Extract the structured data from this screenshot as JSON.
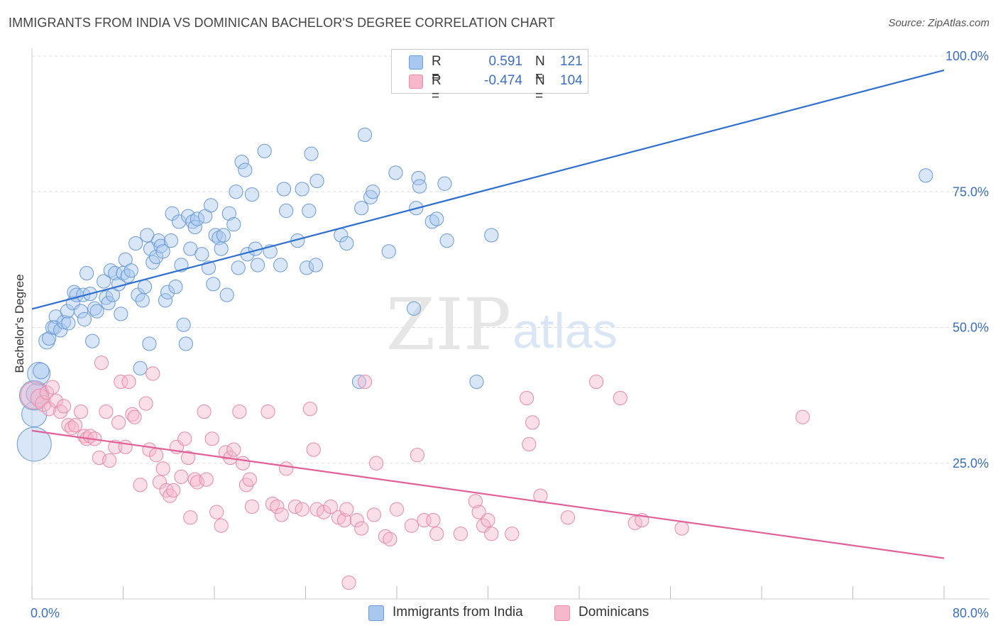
{
  "title": "IMMIGRANTS FROM INDIA VS DOMINICAN BACHELOR'S DEGREE CORRELATION CHART",
  "source": "Source: ZipAtlas.com",
  "watermark": {
    "zip": "ZIP",
    "atlas": "atlas"
  },
  "legend": {
    "india": {
      "r_label": "R =",
      "r_value": "0.591",
      "n_label": "N =",
      "n_value": "121"
    },
    "dominican": {
      "r_label": "R =",
      "r_value": "-0.474",
      "n_label": "N =",
      "n_value": "104"
    }
  },
  "bottom_legend": {
    "india": "Immigrants from India",
    "dominican": "Dominicans"
  },
  "colors": {
    "india_fill": "#a9c8f0",
    "india_stroke": "#6a9ad8",
    "india_line": "#2e6fcf",
    "dominican_fill": "#f7b8cc",
    "dominican_stroke": "#e88aa8",
    "dominican_line": "#e0609a",
    "tick_label": "#3b6fc0",
    "grid": "#dddddd"
  },
  "chart_data": {
    "type": "scatter",
    "title": "IMMIGRANTS FROM INDIA VS DOMINICAN BACHELOR'S DEGREE CORRELATION CHART",
    "xlabel": "",
    "ylabel": "Bachelor's Degree",
    "xlim": [
      0,
      80
    ],
    "ylim": [
      0,
      100
    ],
    "x_tick_labels": [
      "0.0%",
      "80.0%"
    ],
    "y_tick_labels": [
      "25.0%",
      "50.0%",
      "75.0%",
      "100.0%"
    ],
    "y_ticks": [
      25,
      50,
      75,
      100
    ],
    "grid": true,
    "legend_placement": "top-center",
    "series": [
      {
        "name": "Immigrants from India",
        "r": 0.591,
        "n": 121,
        "trend": {
          "x": [
            0,
            80
          ],
          "y": [
            53.4,
            97.4
          ]
        },
        "points": [
          [
            0.2,
            28.5,
            3
          ],
          [
            0.2,
            34.0,
            2.2
          ],
          [
            0.2,
            37.5,
            2.6
          ],
          [
            0.4,
            37.8,
            1.8
          ],
          [
            0.6,
            41.5,
            2.0
          ],
          [
            0.8,
            42.0,
            1.4
          ],
          [
            1.3,
            47.5,
            1.4
          ],
          [
            1.5,
            48.0,
            1.2
          ],
          [
            1.8,
            50.0,
            1.2
          ],
          [
            2.1,
            52.0,
            1.2
          ],
          [
            2.0,
            50.0,
            1.2
          ],
          [
            2.5,
            49.5,
            1.2
          ],
          [
            2.8,
            51.0,
            1.2
          ],
          [
            3.2,
            50.8,
            1.2
          ],
          [
            3.1,
            53.0,
            1.2
          ],
          [
            3.6,
            54.5,
            1.2
          ],
          [
            3.7,
            56.5,
            1.2
          ],
          [
            3.9,
            56.0,
            1.2
          ],
          [
            4.3,
            53.0,
            1.2
          ],
          [
            4.5,
            56.0,
            1.2
          ],
          [
            4.6,
            51.5,
            1.2
          ],
          [
            4.8,
            60.0,
            1.2
          ],
          [
            5.1,
            56.2,
            1.2
          ],
          [
            5.3,
            47.5,
            1.2
          ],
          [
            5.5,
            53.5,
            1.2
          ],
          [
            5.7,
            53.0,
            1.2
          ],
          [
            6.3,
            58.5,
            1.2
          ],
          [
            6.5,
            55.5,
            1.2
          ],
          [
            6.7,
            54.5,
            1.2
          ],
          [
            6.9,
            60.5,
            1.2
          ],
          [
            7.1,
            56.0,
            1.2
          ],
          [
            7.3,
            60.0,
            1.2
          ],
          [
            7.6,
            58.0,
            1.2
          ],
          [
            7.8,
            52.5,
            1.2
          ],
          [
            8.0,
            60.0,
            1.2
          ],
          [
            8.2,
            62.5,
            1.2
          ],
          [
            8.4,
            59.5,
            1.2
          ],
          [
            8.7,
            60.5,
            1.2
          ],
          [
            9.1,
            65.5,
            1.2
          ],
          [
            9.3,
            56.0,
            1.2
          ],
          [
            9.5,
            42.5,
            1.2
          ],
          [
            9.7,
            55.0,
            1.2
          ],
          [
            9.9,
            57.5,
            1.2
          ],
          [
            10.1,
            67.0,
            1.2
          ],
          [
            10.3,
            47.0,
            1.2
          ],
          [
            10.4,
            64.5,
            1.2
          ],
          [
            10.6,
            62.0,
            1.2
          ],
          [
            10.9,
            63.0,
            1.2
          ],
          [
            11.1,
            66.0,
            1.2
          ],
          [
            11.3,
            65.0,
            1.2
          ],
          [
            11.5,
            64.0,
            1.2
          ],
          [
            11.7,
            55.0,
            1.2
          ],
          [
            11.9,
            56.5,
            1.2
          ],
          [
            12.2,
            66.0,
            1.2
          ],
          [
            12.3,
            71.0,
            1.2
          ],
          [
            12.6,
            57.5,
            1.2
          ],
          [
            12.9,
            69.5,
            1.2
          ],
          [
            13.1,
            61.5,
            1.2
          ],
          [
            13.3,
            50.5,
            1.2
          ],
          [
            13.5,
            47.0,
            1.2
          ],
          [
            13.7,
            70.5,
            1.2
          ],
          [
            13.9,
            64.5,
            1.2
          ],
          [
            14.1,
            69.5,
            1.2
          ],
          [
            14.3,
            68.5,
            1.2
          ],
          [
            14.5,
            70.0,
            1.2
          ],
          [
            14.9,
            63.5,
            1.2
          ],
          [
            15.2,
            70.5,
            1.2
          ],
          [
            15.5,
            61.0,
            1.2
          ],
          [
            15.7,
            72.5,
            1.2
          ],
          [
            15.9,
            58.0,
            1.2
          ],
          [
            16.1,
            67.0,
            1.2
          ],
          [
            16.4,
            66.5,
            1.2
          ],
          [
            16.6,
            64.5,
            1.2
          ],
          [
            16.8,
            67.0,
            1.2
          ],
          [
            17.1,
            56.0,
            1.2
          ],
          [
            17.3,
            71.0,
            1.2
          ],
          [
            17.7,
            69.0,
            1.2
          ],
          [
            17.9,
            75.0,
            1.2
          ],
          [
            18.1,
            61.0,
            1.2
          ],
          [
            18.4,
            80.5,
            1.2
          ],
          [
            18.7,
            79.0,
            1.2
          ],
          [
            18.9,
            63.5,
            1.2
          ],
          [
            19.3,
            74.5,
            1.2
          ],
          [
            19.6,
            64.5,
            1.2
          ],
          [
            19.8,
            61.5,
            1.2
          ],
          [
            20.4,
            82.5,
            1.2
          ],
          [
            20.9,
            64.0,
            1.2
          ],
          [
            21.8,
            61.5,
            1.2
          ],
          [
            22.1,
            75.5,
            1.2
          ],
          [
            22.3,
            71.5,
            1.2
          ],
          [
            23.3,
            66.0,
            1.2
          ],
          [
            23.7,
            75.5,
            1.2
          ],
          [
            24.1,
            61.0,
            1.2
          ],
          [
            24.3,
            71.5,
            1.2
          ],
          [
            24.5,
            82.0,
            1.2
          ],
          [
            24.9,
            61.5,
            1.2
          ],
          [
            25.0,
            77.0,
            1.2
          ],
          [
            27.1,
            67.0,
            1.2
          ],
          [
            27.6,
            65.5,
            1.2
          ],
          [
            28.7,
            40.0,
            1.2
          ],
          [
            28.9,
            72.0,
            1.2
          ],
          [
            29.2,
            85.5,
            1.2
          ],
          [
            29.7,
            74.0,
            1.2
          ],
          [
            29.9,
            75.0,
            1.2
          ],
          [
            31.3,
            64.0,
            1.2
          ],
          [
            31.9,
            78.5,
            1.2
          ],
          [
            33.5,
            53.5,
            1.2
          ],
          [
            33.7,
            72.0,
            1.2
          ],
          [
            33.9,
            77.5,
            1.2
          ],
          [
            34.0,
            76.0,
            1.2
          ],
          [
            35.1,
            69.5,
            1.2
          ],
          [
            35.5,
            70.0,
            1.2
          ],
          [
            36.2,
            76.5,
            1.2
          ],
          [
            36.4,
            66.0,
            1.2
          ],
          [
            39.0,
            40.0,
            1.2
          ],
          [
            40.3,
            67.0,
            1.2
          ],
          [
            78.4,
            78.0,
            1.2
          ]
        ]
      },
      {
        "name": "Dominicans",
        "r": -0.474,
        "n": 104,
        "trend": {
          "x": [
            0,
            80
          ],
          "y": [
            31.0,
            7.5
          ]
        },
        "points": [
          [
            0.2,
            37.5,
            2.4
          ],
          [
            0.7,
            37.0,
            1.6
          ],
          [
            1.0,
            36.0,
            1.4
          ],
          [
            1.3,
            38.0,
            1.2
          ],
          [
            1.5,
            35.0,
            1.2
          ],
          [
            1.8,
            39.0,
            1.2
          ],
          [
            2.1,
            36.5,
            1.2
          ],
          [
            2.5,
            34.5,
            1.2
          ],
          [
            2.8,
            35.5,
            1.2
          ],
          [
            3.2,
            32.0,
            1.2
          ],
          [
            3.5,
            31.5,
            1.2
          ],
          [
            3.8,
            32.0,
            1.2
          ],
          [
            4.3,
            34.5,
            1.2
          ],
          [
            4.6,
            30.0,
            1.2
          ],
          [
            4.8,
            29.5,
            1.2
          ],
          [
            5.1,
            30.0,
            1.2
          ],
          [
            5.5,
            29.5,
            1.2
          ],
          [
            5.9,
            26.0,
            1.2
          ],
          [
            6.1,
            43.5,
            1.2
          ],
          [
            6.5,
            34.5,
            1.2
          ],
          [
            6.8,
            25.5,
            1.2
          ],
          [
            7.3,
            28.0,
            1.2
          ],
          [
            7.6,
            32.5,
            1.2
          ],
          [
            7.8,
            40.0,
            1.2
          ],
          [
            8.2,
            28.0,
            1.2
          ],
          [
            8.5,
            40.0,
            1.2
          ],
          [
            8.8,
            34.0,
            1.2
          ],
          [
            9.0,
            33.5,
            1.2
          ],
          [
            9.5,
            21.0,
            1.2
          ],
          [
            10.0,
            36.0,
            1.2
          ],
          [
            10.3,
            27.5,
            1.2
          ],
          [
            10.6,
            41.5,
            1.2
          ],
          [
            10.9,
            26.5,
            1.2
          ],
          [
            11.2,
            21.5,
            1.2
          ],
          [
            11.5,
            24.0,
            1.2
          ],
          [
            11.8,
            20.0,
            1.2
          ],
          [
            12.1,
            19.0,
            1.2
          ],
          [
            12.4,
            20.0,
            1.2
          ],
          [
            12.7,
            28.0,
            1.2
          ],
          [
            13.1,
            22.5,
            1.2
          ],
          [
            13.4,
            29.5,
            1.2
          ],
          [
            13.7,
            26.0,
            1.2
          ],
          [
            13.9,
            15.0,
            1.2
          ],
          [
            14.3,
            22.0,
            1.2
          ],
          [
            14.5,
            21.5,
            1.2
          ],
          [
            15.3,
            22.0,
            1.2
          ],
          [
            15.1,
            34.5,
            1.2
          ],
          [
            15.8,
            29.5,
            1.2
          ],
          [
            16.2,
            16.0,
            1.2
          ],
          [
            16.6,
            13.5,
            1.2
          ],
          [
            17.0,
            27.0,
            1.2
          ],
          [
            17.4,
            26.0,
            1.2
          ],
          [
            17.7,
            27.5,
            1.2
          ],
          [
            18.2,
            34.5,
            1.2
          ],
          [
            18.5,
            25.0,
            1.2
          ],
          [
            18.8,
            21.0,
            1.2
          ],
          [
            19.1,
            22.0,
            1.2
          ],
          [
            19.3,
            17.0,
            1.2
          ],
          [
            20.7,
            34.5,
            1.2
          ],
          [
            21.1,
            17.5,
            1.2
          ],
          [
            21.5,
            17.0,
            1.2
          ],
          [
            21.9,
            15.5,
            1.2
          ],
          [
            22.3,
            24.0,
            1.2
          ],
          [
            23.1,
            17.0,
            1.2
          ],
          [
            23.7,
            16.5,
            1.2
          ],
          [
            24.4,
            35.0,
            1.2
          ],
          [
            24.7,
            27.5,
            1.2
          ],
          [
            25.0,
            16.5,
            1.2
          ],
          [
            25.6,
            16.0,
            1.2
          ],
          [
            26.2,
            17.0,
            1.2
          ],
          [
            26.9,
            15.0,
            1.2
          ],
          [
            27.4,
            14.5,
            1.2
          ],
          [
            27.6,
            16.5,
            1.2
          ],
          [
            27.8,
            3.0,
            1.2
          ],
          [
            28.5,
            14.5,
            1.2
          ],
          [
            28.9,
            13.0,
            1.2
          ],
          [
            29.2,
            40.0,
            1.2
          ],
          [
            30.0,
            15.5,
            1.2
          ],
          [
            30.2,
            25.0,
            1.2
          ],
          [
            31.0,
            11.5,
            1.2
          ],
          [
            31.4,
            11.0,
            1.2
          ],
          [
            32.0,
            16.5,
            1.2
          ],
          [
            33.3,
            13.5,
            1.2
          ],
          [
            33.8,
            26.5,
            1.2
          ],
          [
            34.4,
            14.5,
            1.2
          ],
          [
            35.2,
            14.5,
            1.2
          ],
          [
            35.5,
            12.0,
            1.2
          ],
          [
            37.6,
            12.0,
            1.2
          ],
          [
            38.9,
            18.0,
            1.2
          ],
          [
            39.2,
            16.0,
            1.2
          ],
          [
            39.6,
            13.5,
            1.2
          ],
          [
            40.0,
            14.5,
            1.2
          ],
          [
            40.3,
            12.0,
            1.2
          ],
          [
            42.1,
            12.0,
            1.2
          ],
          [
            43.4,
            37.0,
            1.2
          ],
          [
            43.6,
            28.5,
            1.2
          ],
          [
            43.9,
            32.5,
            1.2
          ],
          [
            44.6,
            19.0,
            1.2
          ],
          [
            47.0,
            15.0,
            1.2
          ],
          [
            49.5,
            40.0,
            1.2
          ],
          [
            51.6,
            37.0,
            1.2
          ],
          [
            52.9,
            14.0,
            1.2
          ],
          [
            53.5,
            14.5,
            1.2
          ],
          [
            57.0,
            13.0,
            1.2
          ],
          [
            67.6,
            33.5,
            1.2
          ]
        ]
      }
    ]
  }
}
